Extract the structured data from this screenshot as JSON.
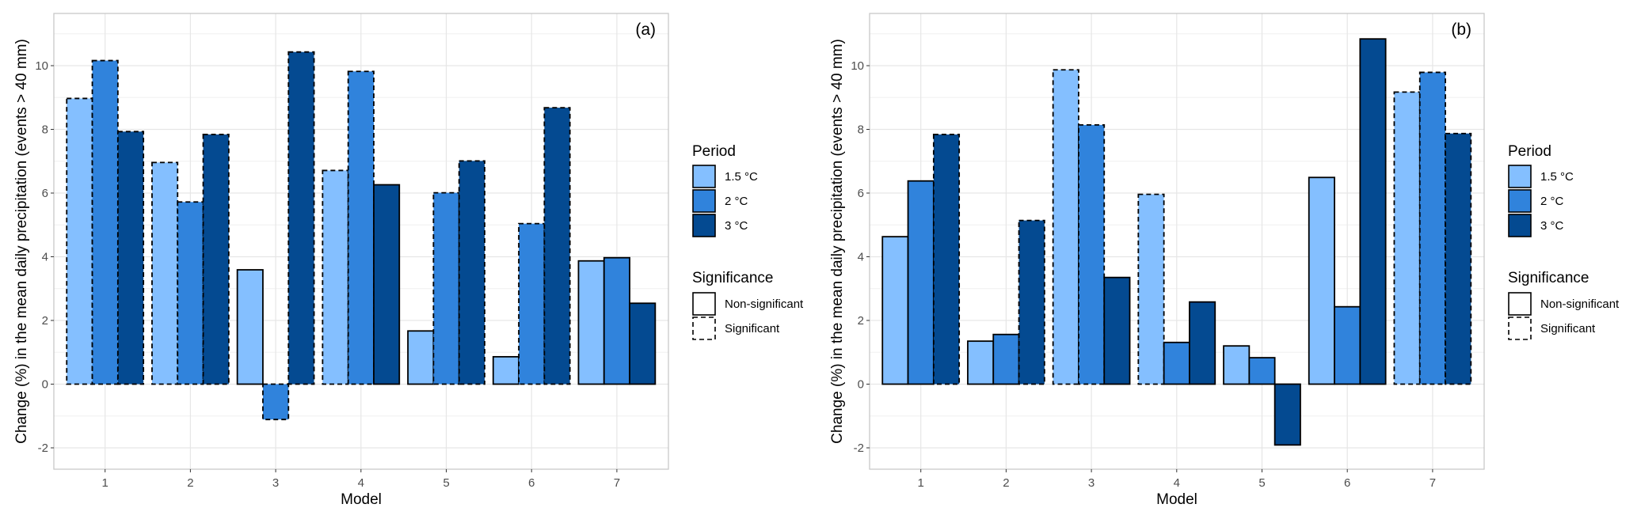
{
  "chart_data": [
    {
      "type": "bar",
      "panel_label": "(a)",
      "xlabel": "Model",
      "ylabel": "Change (%) in the mean daily precipitation (events > 40 mm)",
      "categories": [
        "1",
        "2",
        "3",
        "4",
        "5",
        "6",
        "7"
      ],
      "ylim": [
        -2.6,
        11.6
      ],
      "yticks": [
        -2,
        0,
        2,
        4,
        6,
        8,
        10
      ],
      "ytick_labels": [
        "-2",
        "0",
        "2",
        "4",
        "6",
        "8",
        "10"
      ],
      "grid": true,
      "legend_position": "right",
      "series": [
        {
          "name": "1.5 °C",
          "color": "#84bfff",
          "values": [
            8.97,
            6.96,
            3.59,
            6.71,
            1.67,
            0.86,
            3.87
          ],
          "significant": [
            true,
            true,
            false,
            true,
            false,
            false,
            false
          ]
        },
        {
          "name": "2 °C",
          "color": "#3083dc",
          "values": [
            10.16,
            5.72,
            -1.11,
            9.82,
            6.01,
            5.04,
            3.97
          ],
          "significant": [
            true,
            true,
            true,
            true,
            true,
            true,
            false
          ]
        },
        {
          "name": "3 °C",
          "color": "#044a91",
          "values": [
            7.93,
            7.84,
            10.43,
            6.26,
            7.01,
            8.68,
            2.54
          ],
          "significant": [
            true,
            true,
            true,
            false,
            true,
            true,
            false
          ]
        }
      ]
    },
    {
      "type": "bar",
      "panel_label": "(b)",
      "xlabel": "Model",
      "ylabel": "Change (%) in the mean daily precipitation (events > 40 mm)",
      "categories": [
        "1",
        "2",
        "3",
        "4",
        "5",
        "6",
        "7"
      ],
      "ylim": [
        -2.6,
        11.6
      ],
      "yticks": [
        -2,
        0,
        2,
        4,
        6,
        8,
        10
      ],
      "ytick_labels": [
        "-2",
        "0",
        "2",
        "4",
        "6",
        "8",
        "10"
      ],
      "grid": true,
      "legend_position": "right",
      "series": [
        {
          "name": "1.5 °C",
          "color": "#84bfff",
          "values": [
            4.63,
            1.35,
            9.87,
            5.96,
            1.2,
            6.49,
            9.17
          ],
          "significant": [
            false,
            false,
            true,
            true,
            false,
            false,
            true
          ]
        },
        {
          "name": "2 °C",
          "color": "#3083dc",
          "values": [
            6.38,
            1.56,
            8.14,
            1.31,
            0.83,
            2.43,
            9.79
          ],
          "significant": [
            false,
            false,
            true,
            false,
            false,
            false,
            true
          ]
        },
        {
          "name": "3 °C",
          "color": "#044a91",
          "values": [
            7.84,
            5.14,
            3.35,
            2.58,
            -1.91,
            10.84,
            7.87
          ],
          "significant": [
            true,
            true,
            false,
            false,
            false,
            false,
            true
          ]
        }
      ]
    }
  ],
  "legend": {
    "period_title": "Period",
    "period_items": [
      {
        "label": "1.5 °C",
        "color": "#84bfff"
      },
      {
        "label": "2 °C",
        "color": "#3083dc"
      },
      {
        "label": "3 °C",
        "color": "#044a91"
      }
    ],
    "significance_title": "Significance",
    "significance_items": [
      {
        "label": "Non-significant",
        "style": "solid"
      },
      {
        "label": "Significant",
        "style": "dashed"
      }
    ]
  }
}
